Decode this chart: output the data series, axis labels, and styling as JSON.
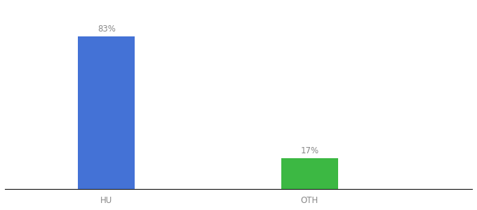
{
  "categories": [
    "HU",
    "OTH"
  ],
  "values": [
    83,
    17
  ],
  "bar_colors": [
    "#4472d6",
    "#3cb843"
  ],
  "label_texts": [
    "83%",
    "17%"
  ],
  "background_color": "#ffffff",
  "axis_line_color": "#111111",
  "label_color": "#888888",
  "label_fontsize": 8.5,
  "tick_fontsize": 8.5,
  "ylim": [
    0,
    100
  ],
  "bar_width": 0.28,
  "x_positions": [
    1,
    2
  ],
  "xlim": [
    0.5,
    2.8
  ],
  "figsize": [
    6.8,
    3.0
  ],
  "dpi": 100
}
